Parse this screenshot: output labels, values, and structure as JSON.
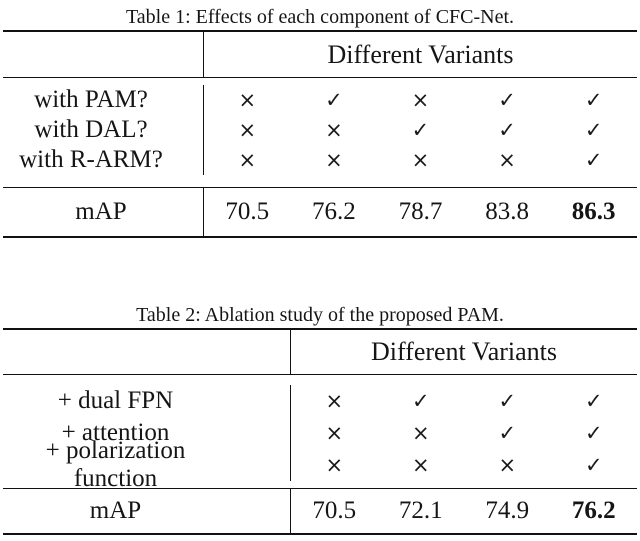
{
  "page": {
    "background": "#ffffff",
    "text_color": "#151515",
    "rule_color": "#111111"
  },
  "tables": [
    {
      "caption": "Table 1: Effects of each component of CFC-Net.",
      "header": "Different Variants",
      "rows": [
        {
          "label": "with PAM?",
          "marks": [
            "×",
            "✓",
            "×",
            "✓",
            "✓"
          ]
        },
        {
          "label": "with DAL?",
          "marks": [
            "×",
            "×",
            "✓",
            "✓",
            "✓"
          ]
        },
        {
          "label": "with R-ARM?",
          "marks": [
            "×",
            "×",
            "×",
            "×",
            "✓"
          ]
        }
      ],
      "map_label": "mAP",
      "map_values": [
        "70.5",
        "76.2",
        "78.7",
        "83.8",
        "86.3"
      ],
      "best_value": "86.3"
    },
    {
      "caption": "Table 2: Ablation study of the proposed PAM.",
      "header": "Different Variants",
      "rows": [
        {
          "label": "+ dual FPN",
          "marks": [
            "×",
            "✓",
            "✓",
            "✓"
          ]
        },
        {
          "label": "+ attention",
          "marks": [
            "×",
            "×",
            "✓",
            "✓"
          ]
        },
        {
          "label": "+ polarization function",
          "marks": [
            "×",
            "×",
            "×",
            "✓"
          ]
        }
      ],
      "map_label": "mAP",
      "map_values": [
        "70.5",
        "72.1",
        "74.9",
        "76.2"
      ],
      "best_value": "76.2"
    }
  ]
}
